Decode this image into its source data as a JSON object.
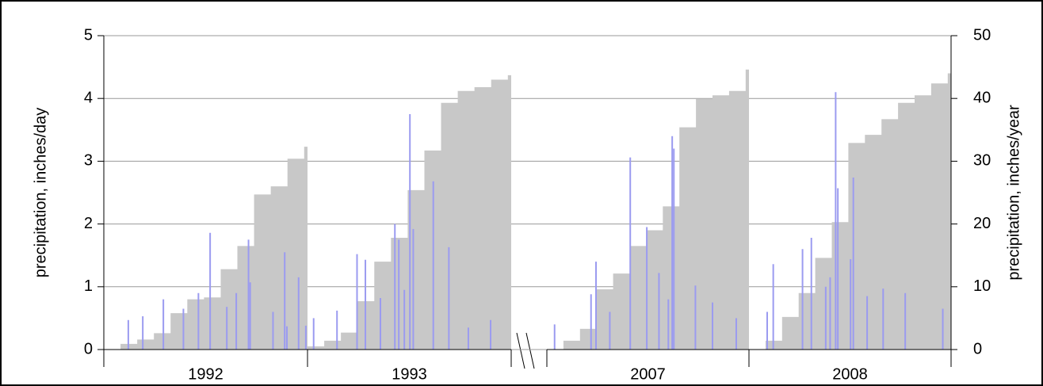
{
  "chart_data": {
    "type": "precipitation",
    "ylabel": "precipitation, inches/day",
    "y2label": "precipitation, inches/year",
    "ylim": [
      0,
      5
    ],
    "yticks": [
      0,
      1,
      2,
      3,
      4,
      5
    ],
    "y2lim": [
      0,
      50
    ],
    "y2ticks": [
      0,
      10,
      20,
      30,
      40,
      50
    ],
    "xlim": [
      0,
      366
    ],
    "grid": true,
    "daily_color": "#9b9bf0",
    "cumulative_color": "#c8c8c8",
    "panels": [
      {
        "label": "1992",
        "cumulative": {
          "x": [
            0,
            30,
            60,
            90,
            120,
            150,
            180,
            210,
            240,
            270,
            300,
            330,
            360
          ],
          "values": [
            0,
            0.9,
            1.6,
            2.6,
            5.8,
            8,
            8.3,
            12.8,
            16.5,
            24.7,
            26,
            30.4,
            32.3
          ],
          "axis": "y2"
        },
        "daily": {
          "x": [
            44,
            70,
            107,
            143,
            170,
            191,
            221,
            238,
            260,
            263,
            304,
            325,
            329,
            350,
            363
          ],
          "values": [
            0.47,
            0.53,
            0.8,
            0.65,
            0.9,
            1.86,
            0.68,
            0.9,
            1.75,
            1.07,
            0.6,
            1.55,
            0.37,
            1.15,
            0.38
          ]
        }
      },
      {
        "label": "1993",
        "cumulative": {
          "x": [
            0,
            30,
            60,
            90,
            120,
            150,
            180,
            210,
            240,
            270,
            300,
            330,
            360
          ],
          "values": [
            0.5,
            1.4,
            2.7,
            7.7,
            14,
            17.8,
            25.4,
            31.7,
            39.3,
            41.2,
            41.8,
            43,
            43.7
          ],
          "axis": "y2"
        },
        "daily": {
          "x": [
            11,
            53,
            89,
            104,
            131,
            157,
            164,
            174,
            184,
            190,
            226,
            254,
            289,
            329
          ],
          "values": [
            0.5,
            0.62,
            1.52,
            1.43,
            0.82,
            2.0,
            1.75,
            0.95,
            3.75,
            1.92,
            2.68,
            1.63,
            0.35,
            0.47
          ]
        }
      },
      {
        "label": "2007",
        "cumulative": {
          "x": [
            0,
            30,
            60,
            90,
            120,
            150,
            180,
            210,
            240,
            270,
            300,
            330,
            360
          ],
          "values": [
            0,
            1.4,
            3.3,
            9.6,
            12.1,
            16.5,
            19,
            22.8,
            35.4,
            39.9,
            40.5,
            41.2,
            44.6
          ],
          "axis": "y2"
        },
        "daily": {
          "x": [
            14,
            80,
            89,
            114,
            151,
            181,
            203,
            220,
            227,
            230,
            269,
            300,
            343
          ],
          "values": [
            0.4,
            0.88,
            1.4,
            0.6,
            3.06,
            1.95,
            1.22,
            0.8,
            3.4,
            3.2,
            1.02,
            0.75,
            0.5
          ]
        }
      },
      {
        "label": "2008",
        "cumulative": {
          "x": [
            0,
            30,
            60,
            90,
            120,
            150,
            180,
            210,
            240,
            270,
            300,
            330,
            360
          ],
          "values": [
            0,
            1.4,
            5.2,
            9,
            14.6,
            20.3,
            32.9,
            34.2,
            36.7,
            39.3,
            40.5,
            42.4,
            44
          ],
          "axis": "y2"
        },
        "daily": {
          "x": [
            33,
            44,
            97,
            113,
            139,
            147,
            157,
            161,
            184,
            189,
            214,
            243,
            283,
            351
          ],
          "values": [
            0.6,
            1.36,
            1.6,
            1.78,
            1.0,
            1.15,
            4.1,
            2.57,
            1.44,
            2.74,
            0.85,
            0.97,
            0.9,
            0.65
          ]
        }
      }
    ]
  }
}
